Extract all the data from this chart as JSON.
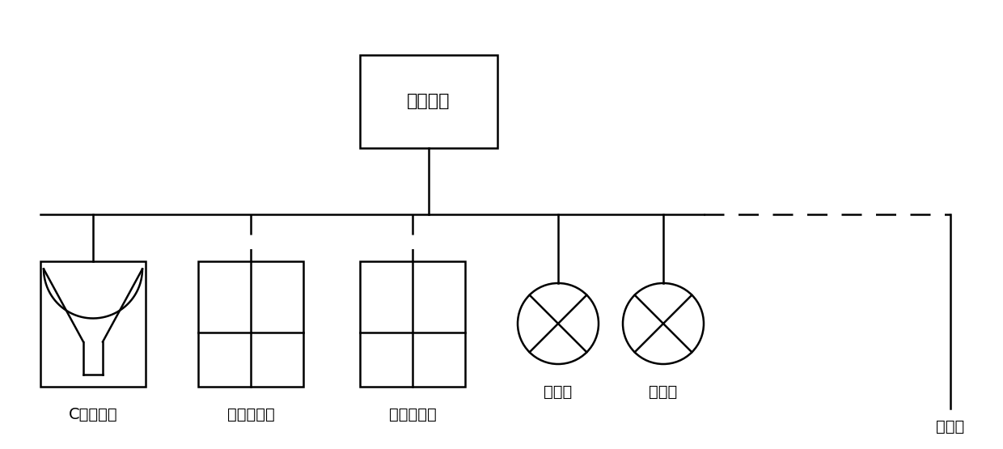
{
  "bg_color": "#ffffff",
  "line_color": "#000000",
  "line_width": 1.8,
  "control_label": "控制系统",
  "nodes": [
    {
      "id": "capture",
      "label": "C捕捉装置",
      "line": "solid"
    },
    {
      "id": "storage1",
      "label": "产消储装置",
      "line": "dashed"
    },
    {
      "id": "storage2",
      "label": "产消储装置",
      "line": "dashed"
    },
    {
      "id": "load1",
      "label": "用户端",
      "line": "solid"
    },
    {
      "id": "load2",
      "label": "用户端",
      "line": "solid"
    },
    {
      "id": "grid",
      "label": "外电网",
      "line": "solid"
    }
  ],
  "font_size": 14,
  "font_size_ctrl": 16
}
